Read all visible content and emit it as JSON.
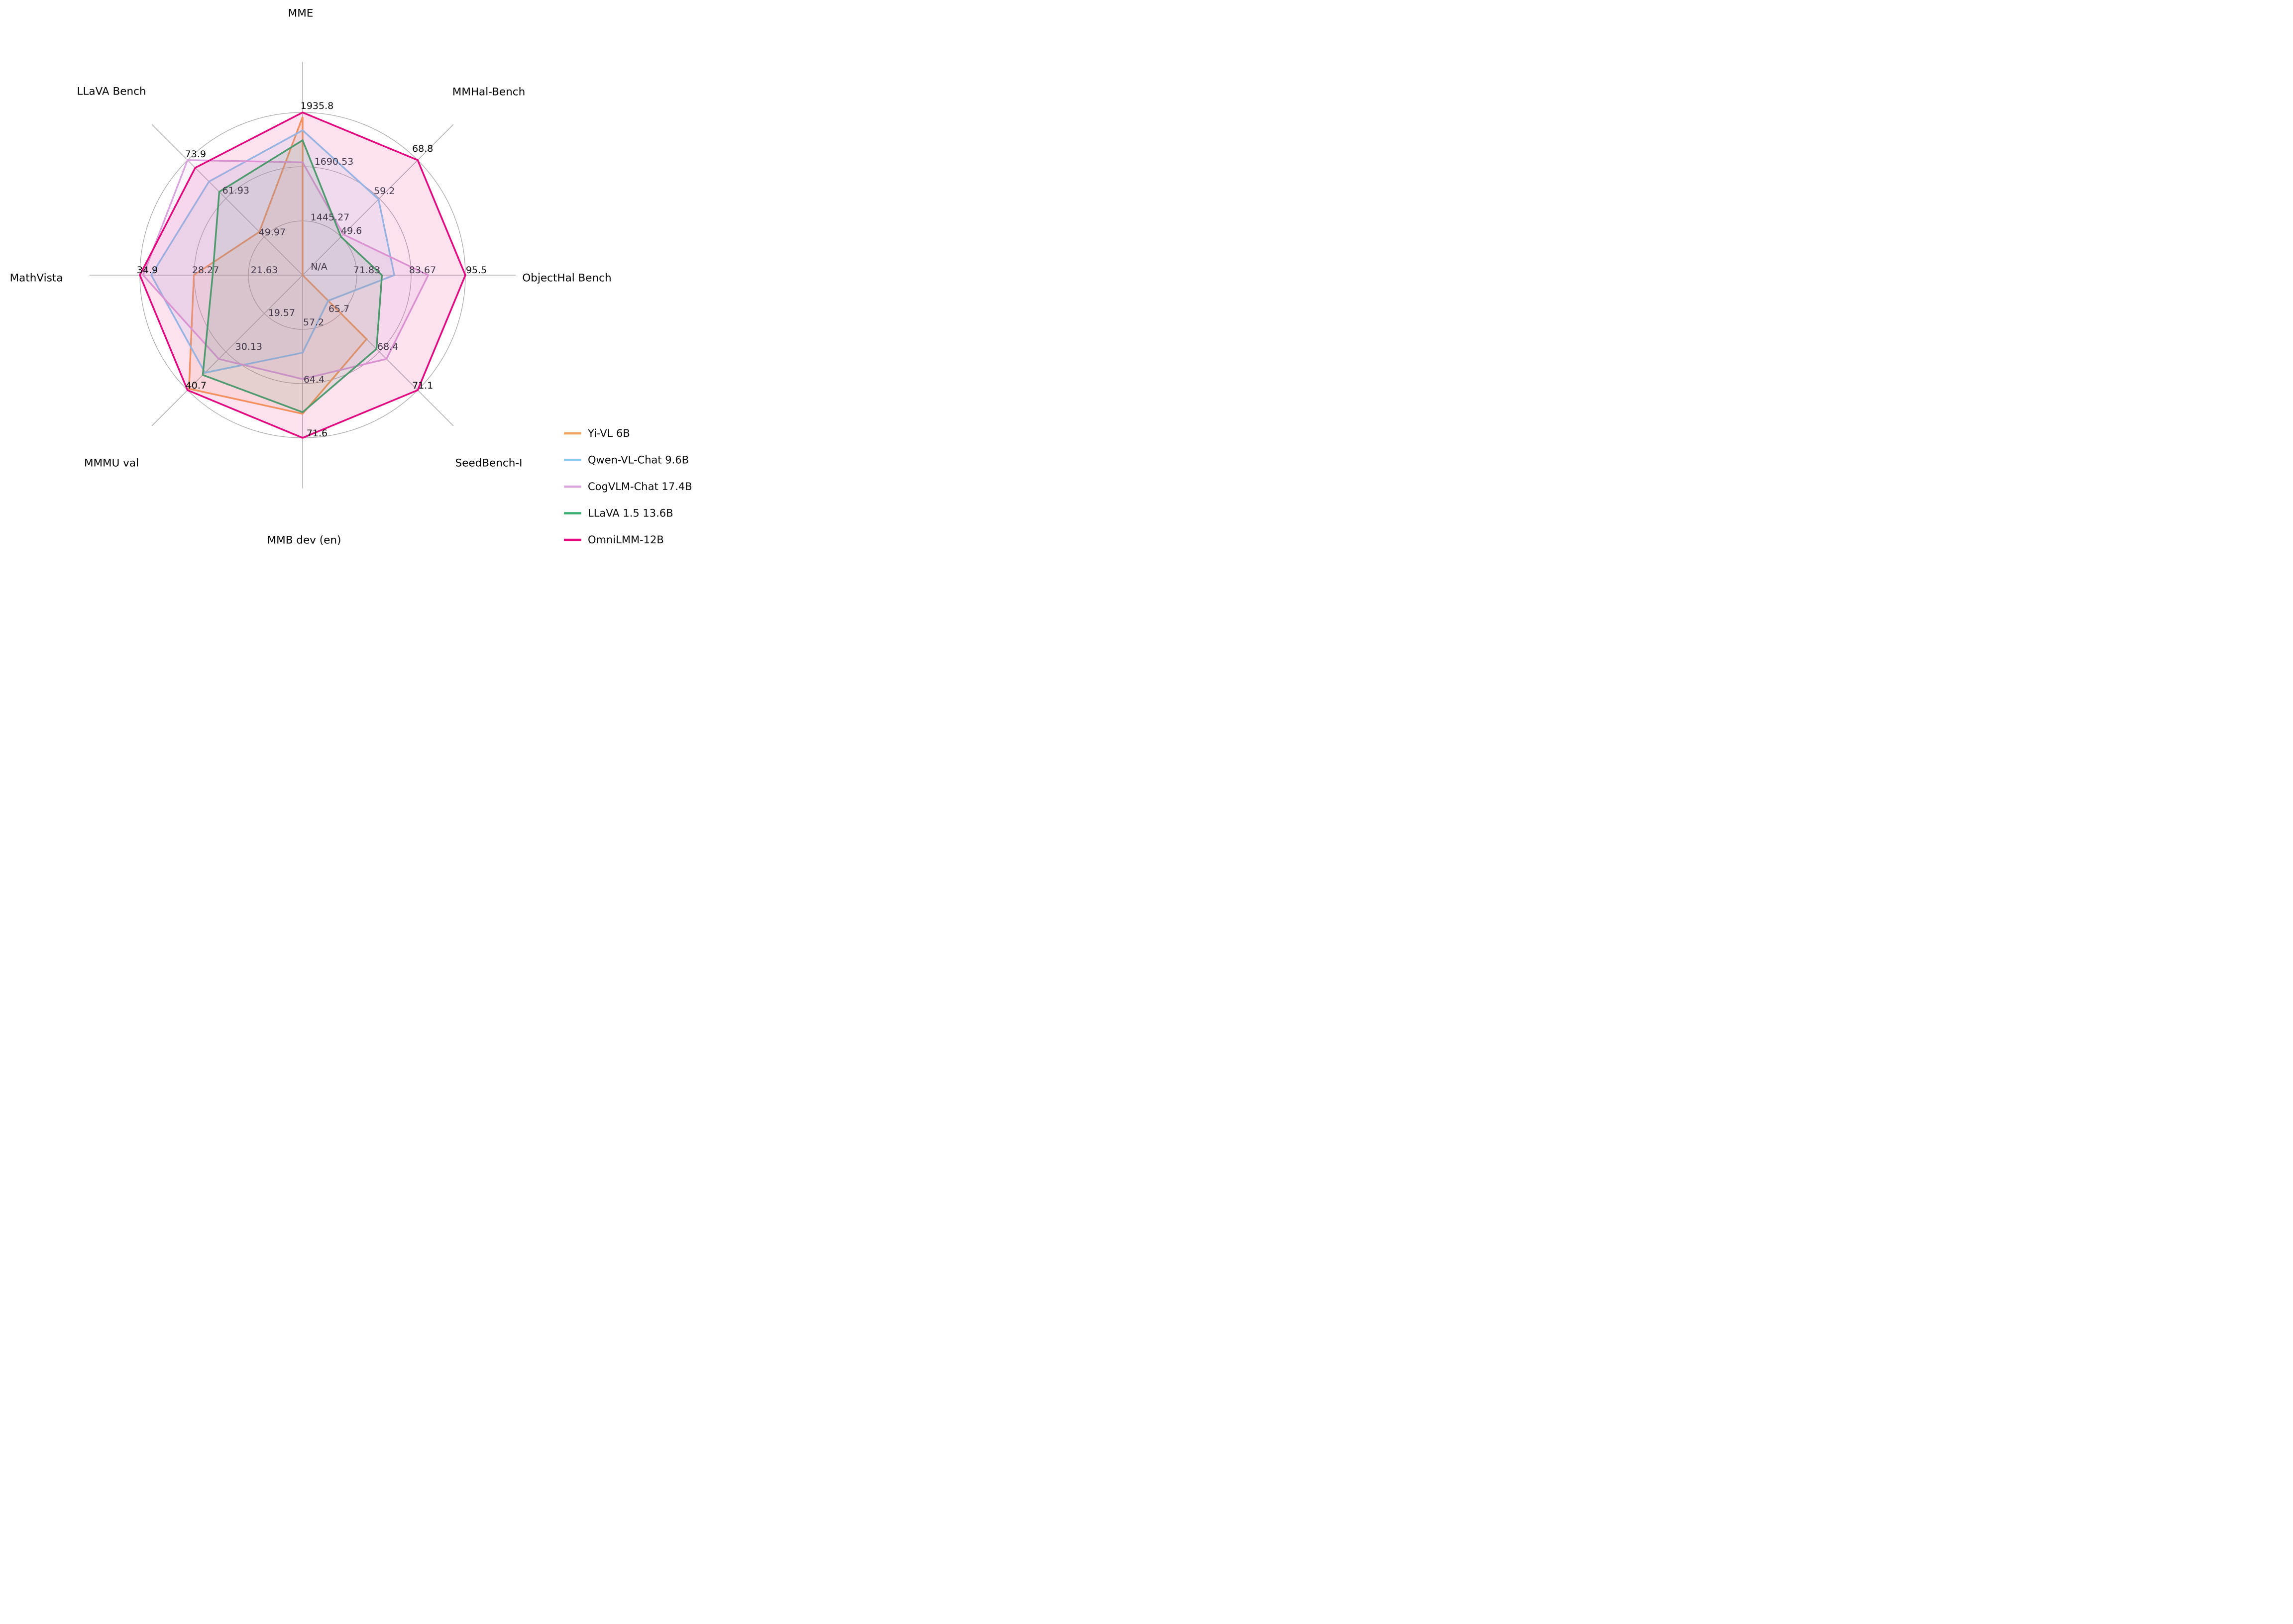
{
  "figure": {
    "background": "#ffffff",
    "na_label": "N/A"
  },
  "chart_data": {
    "type": "radar",
    "title": "",
    "grid": {
      "rings": 3,
      "ring_fractions": [
        0.3333,
        0.6667,
        1.0
      ],
      "grid_on": true
    },
    "axes": [
      {
        "label": "MME",
        "angle_deg": 90,
        "center_value": 1200,
        "ring_values": [
          1445.27,
          1690.53,
          1935.8
        ],
        "ring_labels": [
          "1445.27",
          "1690.53",
          "1935.8"
        ],
        "center_tick": null
      },
      {
        "label": "MMHal-Bench",
        "angle_deg": 45,
        "center_value": 40,
        "ring_values": [
          49.6,
          59.2,
          68.8
        ],
        "ring_labels": [
          "49.6",
          "59.2",
          "68.8"
        ],
        "center_tick": null
      },
      {
        "label": "ObjectHal Bench",
        "angle_deg": 0,
        "center_value": 60,
        "ring_values": [
          71.83,
          83.67,
          95.5
        ],
        "ring_labels": [
          "71.83",
          "83.67",
          "95.5"
        ],
        "center_tick": "N/A"
      },
      {
        "label": "SeedBench-I",
        "angle_deg": -45,
        "center_value": 63,
        "ring_values": [
          65.7,
          68.4,
          71.1
        ],
        "ring_labels": [
          "65.7",
          "68.4",
          "71.1"
        ],
        "center_tick": null
      },
      {
        "label": "MMB dev (en)",
        "angle_deg": -90,
        "center_value": 50,
        "ring_values": [
          57.2,
          64.4,
          71.6
        ],
        "ring_labels": [
          "57.2",
          "64.4",
          "71.6"
        ],
        "center_tick": null
      },
      {
        "label": "MMMU val",
        "angle_deg": -135,
        "center_value": 9,
        "ring_values": [
          19.57,
          30.13,
          40.7
        ],
        "ring_labels": [
          "19.57",
          "30.13",
          "40.7"
        ],
        "center_tick": null
      },
      {
        "label": "MathVista",
        "angle_deg": 180,
        "center_value": 15,
        "ring_values": [
          21.63,
          28.27,
          34.9
        ],
        "ring_labels": [
          "21.63",
          "28.27",
          "34.9"
        ],
        "center_tick": null
      },
      {
        "label": "LLaVA Bench",
        "angle_deg": 135,
        "center_value": 38,
        "ring_values": [
          49.97,
          61.93,
          73.9
        ],
        "ring_labels": [
          "49.97",
          "61.93",
          "73.9"
        ],
        "center_tick": null
      }
    ],
    "series": [
      {
        "name": "Yi-VL 6B",
        "color": "#F6A25A",
        "values": [
          1915,
          null,
          null,
          67.5,
          68.4,
          40.3,
          28.3,
          51.5
        ]
      },
      {
        "name": "Qwen-VL-Chat 9.6B",
        "color": "#8CCBF0",
        "values": [
          1855,
          59.0,
          80.0,
          64.8,
          60.3,
          35.9,
          33.5,
          67.2
        ]
      },
      {
        "name": "CogVLM-Chat 17.4B",
        "color": "#D9A6DD",
        "values": [
          1710,
          50.2,
          87.4,
          68.9,
          63.8,
          32.1,
          34.5,
          73.9
        ]
      },
      {
        "name": "LLaVA 1.5 13.6B",
        "color": "#3AAE6C",
        "values": [
          1810,
          49.6,
          77.3,
          68.2,
          68.2,
          36.5,
          26.0,
          64.0
        ]
      },
      {
        "name": "OmniLMM-12B",
        "color": "#E4067E",
        "values": [
          1935.8,
          68.8,
          95.5,
          71.1,
          71.6,
          40.7,
          34.9,
          71.5
        ]
      }
    ],
    "legend": {
      "position": "bottom-right",
      "items": [
        {
          "label": "Yi-VL 6B",
          "color": "#F6A25A"
        },
        {
          "label": "Qwen-VL-Chat 9.6B",
          "color": "#8CCBF0"
        },
        {
          "label": "CogVLM-Chat 17.4B",
          "color": "#D9A6DD"
        },
        {
          "label": "LLaVA 1.5 13.6B",
          "color": "#3AAE6C"
        },
        {
          "label": "OmniLMM-12B",
          "color": "#E4067E"
        }
      ]
    },
    "style_colors": {
      "ring_gridline": "#ABA7AB",
      "axis_spoke": "#A3A0A3",
      "tick_label_inner": "#43384a",
      "tick_label_outer": "#0a0a0a",
      "axis_title": "#000000"
    }
  }
}
